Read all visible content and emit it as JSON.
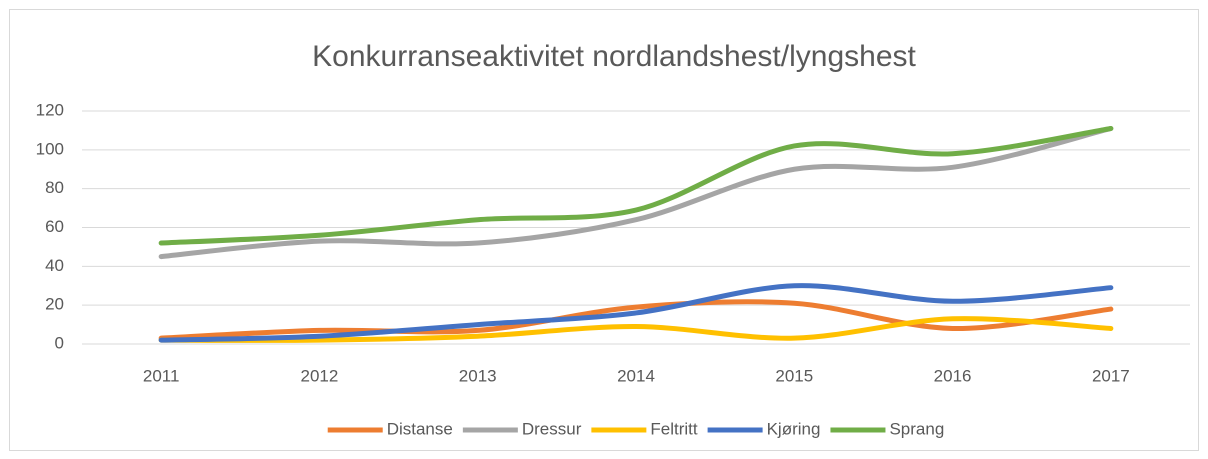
{
  "chart_data": {
    "type": "line",
    "title": "Konkurranseaktivitet nordlandshest/lyngshest",
    "categories": [
      "2011",
      "2012",
      "2013",
      "2014",
      "2015",
      "2016",
      "2017"
    ],
    "series": [
      {
        "name": "Distanse",
        "color": "#ed7d31",
        "values": [
          3,
          7,
          7,
          19,
          21,
          8,
          18
        ]
      },
      {
        "name": "Dressur",
        "color": "#a5a5a5",
        "values": [
          45,
          53,
          52,
          64,
          90,
          91,
          111
        ]
      },
      {
        "name": "Feltritt",
        "color": "#ffc000",
        "values": [
          2,
          2,
          4,
          9,
          3,
          13,
          8
        ]
      },
      {
        "name": "Kjøring",
        "color": "#4472c4",
        "values": [
          2,
          4,
          10,
          16,
          30,
          22,
          29
        ]
      },
      {
        "name": "Sprang",
        "color": "#70ad47",
        "values": [
          52,
          56,
          64,
          69,
          102,
          98,
          111
        ]
      }
    ],
    "ylim": [
      0,
      120
    ],
    "yticks": [
      0,
      20,
      40,
      60,
      80,
      100,
      120
    ],
    "grid": true,
    "legend": "bottom"
  }
}
